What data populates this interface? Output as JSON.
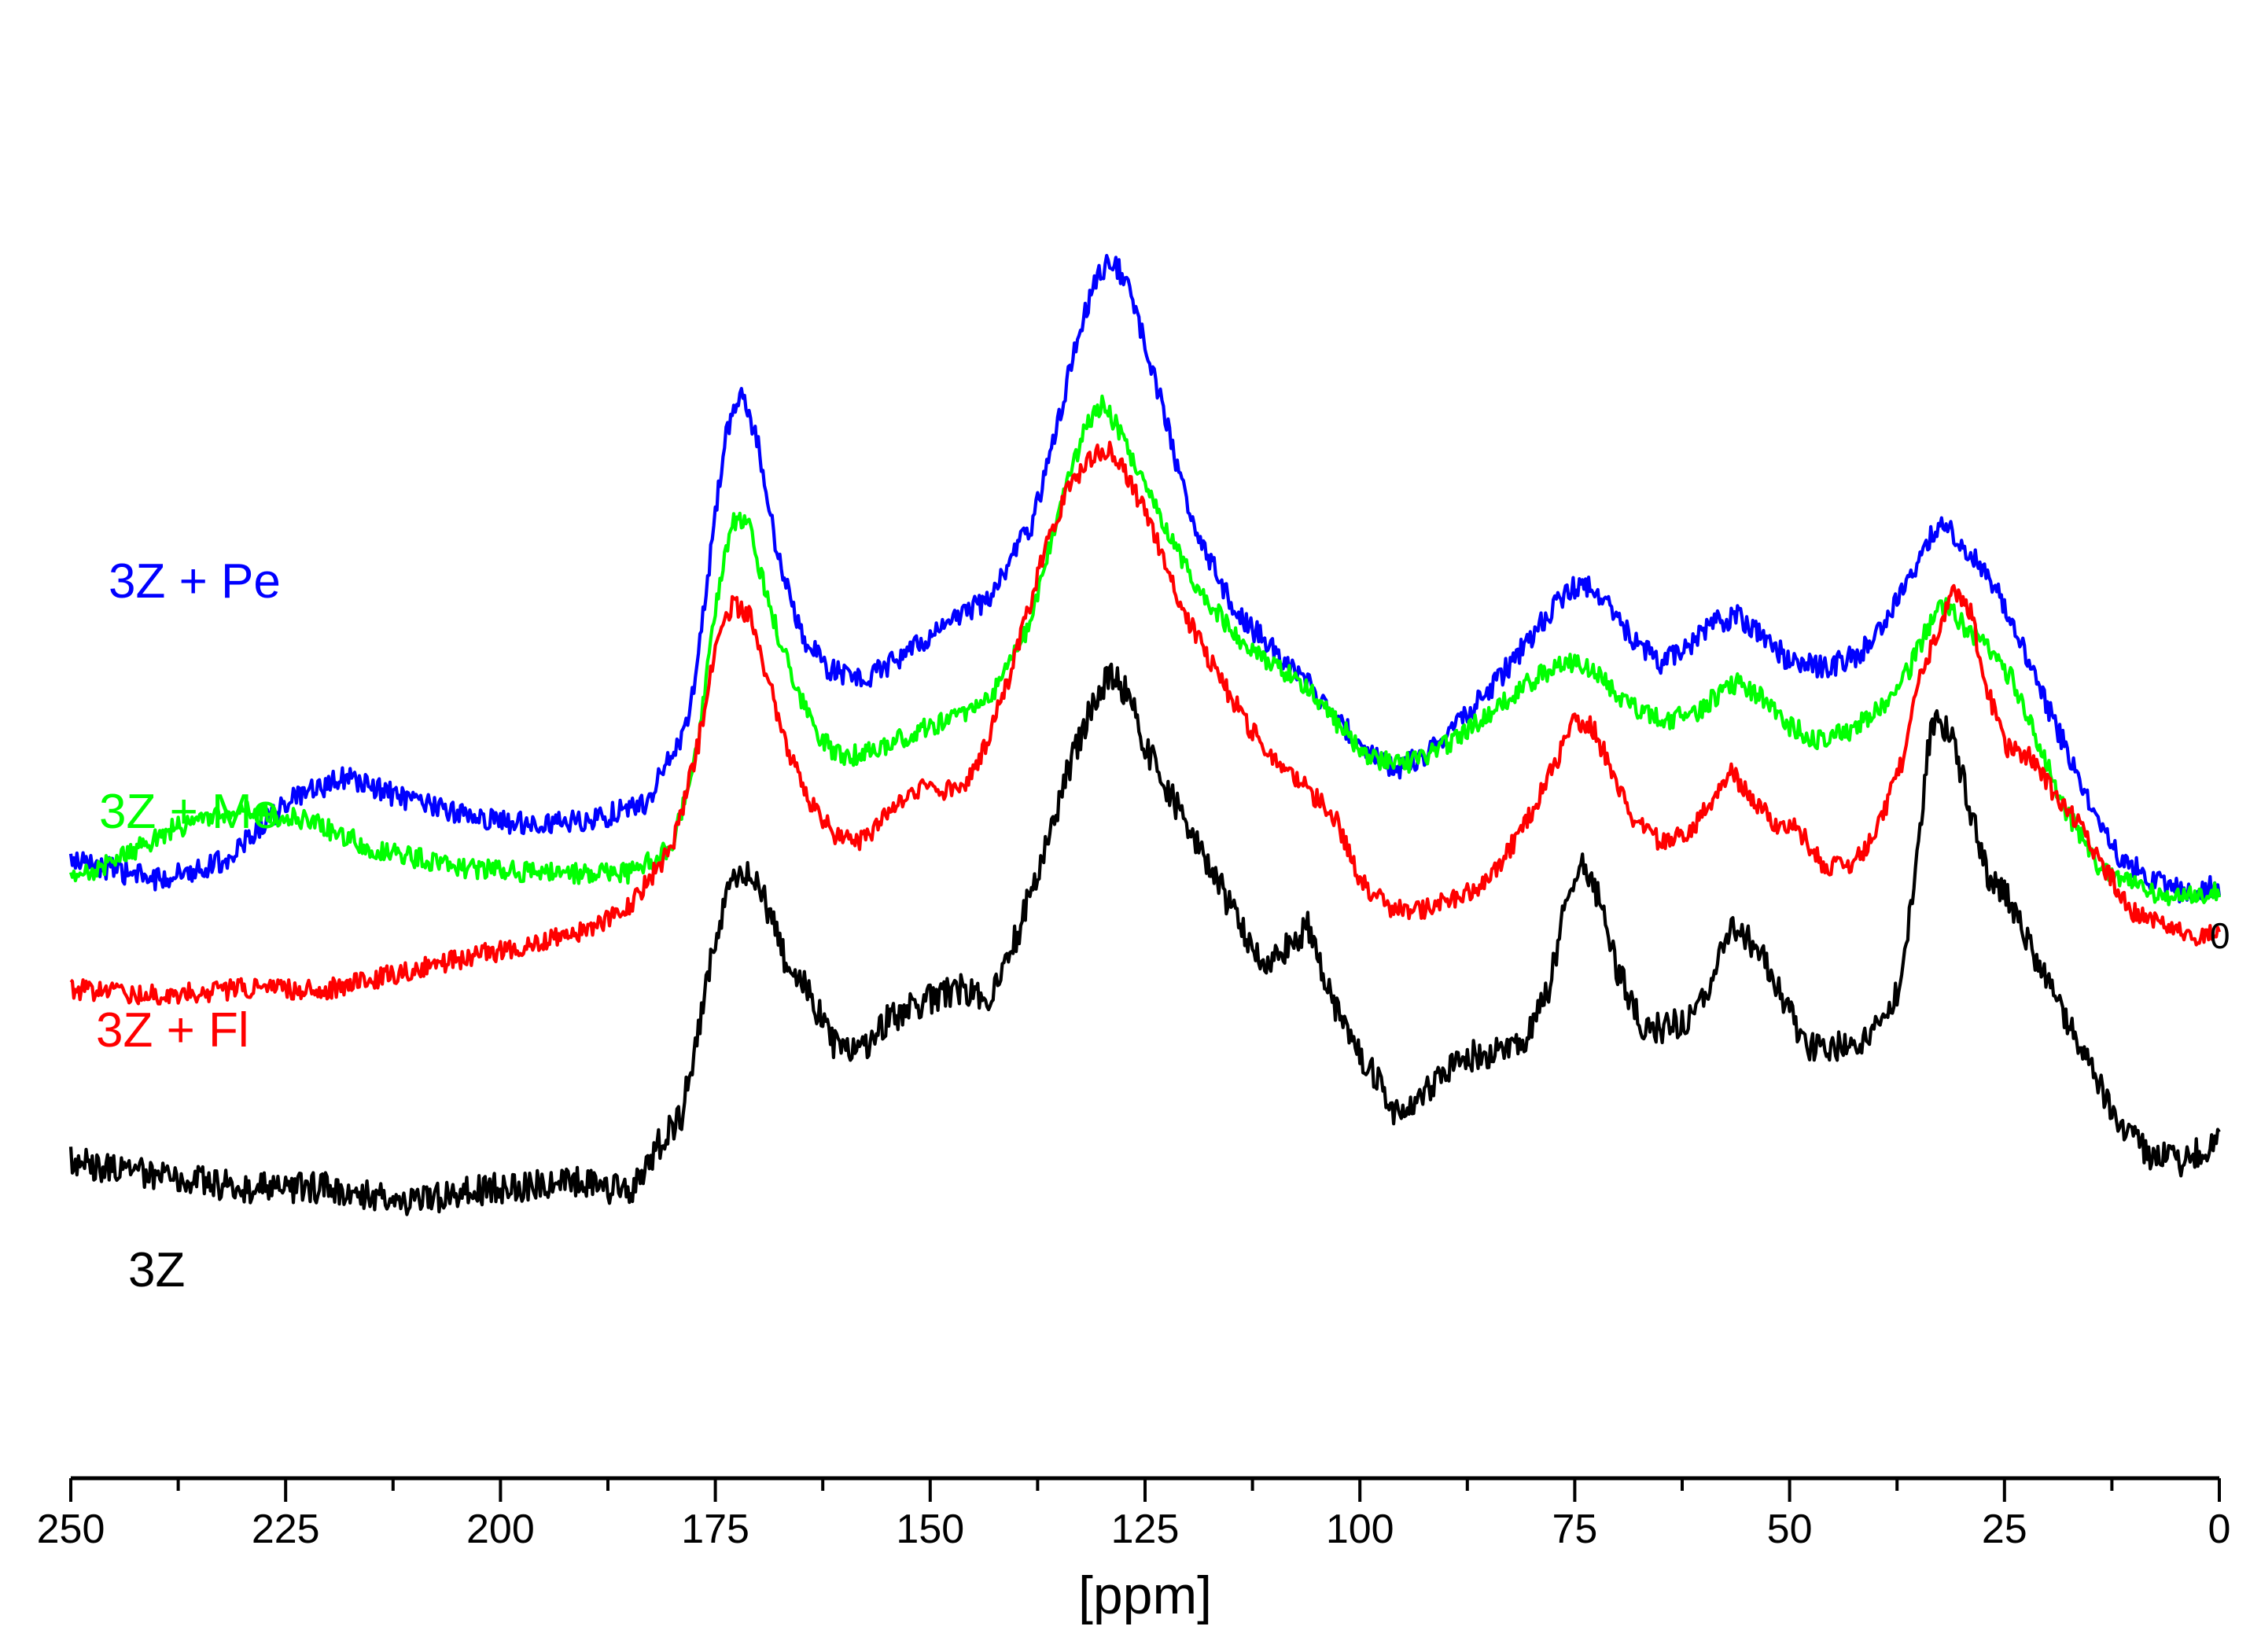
{
  "chart_data": {
    "type": "line",
    "title": "",
    "xlabel": "[ppm]",
    "ylabel": "",
    "xlim": [
      250,
      0
    ],
    "x_reversed": true,
    "x_ticks": [
      250,
      225,
      200,
      175,
      150,
      125,
      100,
      75,
      50,
      25,
      0
    ],
    "x_tick_labels": [
      "250",
      "225",
      "200",
      "175",
      "150",
      "125",
      "100",
      "75",
      "50",
      "25",
      "0"
    ],
    "y_axis_shown": false,
    "grid": false,
    "legend": "inline labels, left of curves",
    "stray_label": "0",
    "series": [
      {
        "name": "3Z + Pe",
        "color": "#0000ff",
        "noise": 0.18,
        "points": [
          [
            250,
            3.5
          ],
          [
            240,
            3.2
          ],
          [
            232,
            3.5
          ],
          [
            225,
            4.4
          ],
          [
            218,
            4.8
          ],
          [
            210,
            4.4
          ],
          [
            200,
            4.1
          ],
          [
            190,
            4.1
          ],
          [
            183,
            4.4
          ],
          [
            178,
            5.7
          ],
          [
            176,
            7.8
          ],
          [
            174,
            10.0
          ],
          [
            172,
            10.8
          ],
          [
            170,
            10.0
          ],
          [
            168,
            8.4
          ],
          [
            165,
            7.0
          ],
          [
            162,
            6.5
          ],
          [
            158,
            6.3
          ],
          [
            153,
            6.7
          ],
          [
            148,
            7.2
          ],
          [
            143,
            7.6
          ],
          [
            138,
            8.8
          ],
          [
            134,
            11.0
          ],
          [
            131,
            12.5
          ],
          [
            129,
            12.9
          ],
          [
            127,
            12.5
          ],
          [
            124,
            11.1
          ],
          [
            121,
            9.5
          ],
          [
            118,
            8.3
          ],
          [
            114,
            7.3
          ],
          [
            110,
            6.8
          ],
          [
            105,
            6.1
          ],
          [
            100,
            5.3
          ],
          [
            96,
            4.9
          ],
          [
            92,
            5.2
          ],
          [
            88,
            5.7
          ],
          [
            84,
            6.3
          ],
          [
            80,
            7.0
          ],
          [
            76,
            7.7
          ],
          [
            74,
            7.8
          ],
          [
            71,
            7.5
          ],
          [
            68,
            6.9
          ],
          [
            65,
            6.6
          ],
          [
            62,
            6.8
          ],
          [
            59,
            7.2
          ],
          [
            56,
            7.3
          ],
          [
            53,
            7.0
          ],
          [
            50,
            6.6
          ],
          [
            46,
            6.5
          ],
          [
            42,
            6.7
          ],
          [
            38,
            7.4
          ],
          [
            35,
            8.2
          ],
          [
            33,
            8.7
          ],
          [
            31,
            8.6
          ],
          [
            28,
            8.1
          ],
          [
            25,
            7.5
          ],
          [
            22,
            6.5
          ],
          [
            19,
            5.6
          ],
          [
            15,
            4.4
          ],
          [
            12,
            3.6
          ],
          [
            8,
            3.2
          ],
          [
            4,
            3.0
          ],
          [
            0,
            3.1
          ]
        ]
      },
      {
        "name": "3Z + Me",
        "color": "#00ff00",
        "noise": 0.16,
        "points": [
          [
            250,
            3.2
          ],
          [
            245,
            3.5
          ],
          [
            238,
            4.0
          ],
          [
            230,
            4.3
          ],
          [
            222,
            4.1
          ],
          [
            215,
            3.7
          ],
          [
            205,
            3.4
          ],
          [
            195,
            3.3
          ],
          [
            185,
            3.3
          ],
          [
            180,
            3.7
          ],
          [
            177,
            5.3
          ],
          [
            175,
            7.4
          ],
          [
            173,
            8.8
          ],
          [
            171,
            8.7
          ],
          [
            169,
            7.6
          ],
          [
            166,
            6.3
          ],
          [
            163,
            5.4
          ],
          [
            160,
            5.1
          ],
          [
            155,
            5.3
          ],
          [
            150,
            5.6
          ],
          [
            146,
            5.8
          ],
          [
            142,
            6.2
          ],
          [
            138,
            7.3
          ],
          [
            135,
            9.0
          ],
          [
            132,
            10.2
          ],
          [
            130,
            10.6
          ],
          [
            128,
            10.2
          ],
          [
            125,
            9.3
          ],
          [
            122,
            8.5
          ],
          [
            119,
            7.8
          ],
          [
            115,
            7.1
          ],
          [
            111,
            6.6
          ],
          [
            107,
            6.3
          ],
          [
            103,
            5.7
          ],
          [
            99,
            5.1
          ],
          [
            95,
            5.0
          ],
          [
            91,
            5.2
          ],
          [
            87,
            5.6
          ],
          [
            83,
            6.0
          ],
          [
            79,
            6.4
          ],
          [
            76,
            6.6
          ],
          [
            73,
            6.5
          ],
          [
            70,
            6.1
          ],
          [
            67,
            5.8
          ],
          [
            64,
            5.7
          ],
          [
            61,
            5.8
          ],
          [
            58,
            6.1
          ],
          [
            56,
            6.3
          ],
          [
            53,
            6.0
          ],
          [
            50,
            5.6
          ],
          [
            47,
            5.4
          ],
          [
            43,
            5.5
          ],
          [
            39,
            5.9
          ],
          [
            36,
            6.5
          ],
          [
            34,
            7.1
          ],
          [
            32,
            7.5
          ],
          [
            30,
            7.2
          ],
          [
            27,
            6.8
          ],
          [
            24,
            6.3
          ],
          [
            21,
            5.3
          ],
          [
            18,
            4.3
          ],
          [
            14,
            3.4
          ],
          [
            10,
            3.1
          ],
          [
            5,
            2.9
          ],
          [
            0,
            3.0
          ]
        ]
      },
      {
        "name": "3Z + Fl",
        "color": "#ff0000",
        "noise": 0.16,
        "points": [
          [
            250,
            1.5
          ],
          [
            240,
            1.4
          ],
          [
            230,
            1.5
          ],
          [
            220,
            1.5
          ],
          [
            210,
            1.8
          ],
          [
            200,
            2.1
          ],
          [
            190,
            2.4
          ],
          [
            185,
            2.8
          ],
          [
            180,
            3.7
          ],
          [
            177,
            5.3
          ],
          [
            175,
            6.8
          ],
          [
            173,
            7.5
          ],
          [
            171,
            7.3
          ],
          [
            169,
            6.4
          ],
          [
            167,
            5.4
          ],
          [
            164,
            4.4
          ],
          [
            161,
            3.9
          ],
          [
            158,
            3.8
          ],
          [
            155,
            4.2
          ],
          [
            152,
            4.6
          ],
          [
            149,
            4.6
          ],
          [
            146,
            4.6
          ],
          [
            143,
            5.5
          ],
          [
            140,
            6.7
          ],
          [
            137,
            8.2
          ],
          [
            134,
            9.3
          ],
          [
            131,
            9.8
          ],
          [
            129,
            9.9
          ],
          [
            127,
            9.5
          ],
          [
            124,
            8.6
          ],
          [
            121,
            7.5
          ],
          [
            117,
            6.5
          ],
          [
            113,
            5.6
          ],
          [
            109,
            4.9
          ],
          [
            106,
            4.6
          ],
          [
            103,
            4.2
          ],
          [
            100,
            3.2
          ],
          [
            97,
            2.8
          ],
          [
            93,
            2.7
          ],
          [
            89,
            2.9
          ],
          [
            85,
            3.2
          ],
          [
            81,
            4.0
          ],
          [
            77,
            5.1
          ],
          [
            75,
            5.7
          ],
          [
            73,
            5.6
          ],
          [
            71,
            5.0
          ],
          [
            68,
            4.1
          ],
          [
            65,
            3.8
          ],
          [
            62,
            3.9
          ],
          [
            59,
            4.4
          ],
          [
            57,
            4.9
          ],
          [
            55,
            4.6
          ],
          [
            52,
            4.1
          ],
          [
            49,
            4.0
          ],
          [
            46,
            3.4
          ],
          [
            43,
            3.4
          ],
          [
            40,
            3.9
          ],
          [
            37,
            5.0
          ],
          [
            35,
            6.3
          ],
          [
            32,
            7.3
          ],
          [
            31,
            7.7
          ],
          [
            29,
            7.4
          ],
          [
            27,
            6.2
          ],
          [
            25,
            5.3
          ],
          [
            22,
            5.1
          ],
          [
            19,
            4.5
          ],
          [
            16,
            4.0
          ],
          [
            13,
            3.3
          ],
          [
            10,
            2.7
          ],
          [
            6,
            2.5
          ],
          [
            3,
            2.3
          ],
          [
            0,
            2.4
          ]
        ]
      },
      {
        "name": "3Z",
        "color": "#000000",
        "noise": 0.24,
        "points": [
          [
            250,
            -1.2
          ],
          [
            245,
            -1.3
          ],
          [
            240,
            -1.4
          ],
          [
            230,
            -1.6
          ],
          [
            220,
            -1.6
          ],
          [
            210,
            -1.8
          ],
          [
            200,
            -1.6
          ],
          [
            190,
            -1.5
          ],
          [
            185,
            -1.7
          ],
          [
            182,
            -1.0
          ],
          [
            179,
            -0.5
          ],
          [
            177,
            0.8
          ],
          [
            175,
            2.3
          ],
          [
            173,
            3.2
          ],
          [
            171,
            3.4
          ],
          [
            169,
            2.8
          ],
          [
            167,
            2.0
          ],
          [
            164,
            1.4
          ],
          [
            161,
            0.6
          ],
          [
            158,
            0.5
          ],
          [
            155,
            1.0
          ],
          [
            151,
            1.3
          ],
          [
            147,
            1.5
          ],
          [
            143,
            1.4
          ],
          [
            140,
            2.3
          ],
          [
            137,
            3.5
          ],
          [
            134,
            4.9
          ],
          [
            131,
            6.0
          ],
          [
            129,
            6.4
          ],
          [
            127,
            6.1
          ],
          [
            125,
            5.3
          ],
          [
            122,
            4.5
          ],
          [
            120,
            4.0
          ],
          [
            117,
            3.3
          ],
          [
            114,
            2.5
          ],
          [
            111,
            1.8
          ],
          [
            108,
            2.2
          ],
          [
            106,
            2.5
          ],
          [
            104,
            1.6
          ],
          [
            102,
            0.9
          ],
          [
            99,
            0.3
          ],
          [
            96,
            -0.4
          ],
          [
            93,
            -0.2
          ],
          [
            89,
            0.4
          ],
          [
            85,
            0.5
          ],
          [
            81,
            0.7
          ],
          [
            78,
            1.5
          ],
          [
            76,
            2.9
          ],
          [
            74,
            3.4
          ],
          [
            72,
            2.9
          ],
          [
            70,
            1.8
          ],
          [
            67,
            0.9
          ],
          [
            64,
            0.9
          ],
          [
            61,
            1.1
          ],
          [
            59,
            1.7
          ],
          [
            57,
            2.4
          ],
          [
            54,
            2.2
          ],
          [
            51,
            1.4
          ],
          [
            48,
            0.6
          ],
          [
            45,
            0.6
          ],
          [
            42,
            0.7
          ],
          [
            39,
            1.0
          ],
          [
            37,
            1.6
          ],
          [
            35,
            3.6
          ],
          [
            34,
            5.2
          ],
          [
            33,
            5.7
          ],
          [
            31,
            5.4
          ],
          [
            29,
            4.3
          ],
          [
            27,
            3.3
          ],
          [
            24,
            2.8
          ],
          [
            21,
            1.9
          ],
          [
            18,
            1.1
          ],
          [
            15,
            0.3
          ],
          [
            12,
            -0.5
          ],
          [
            8,
            -1.1
          ],
          [
            4,
            -1.2
          ],
          [
            0,
            -0.8
          ]
        ]
      }
    ]
  }
}
